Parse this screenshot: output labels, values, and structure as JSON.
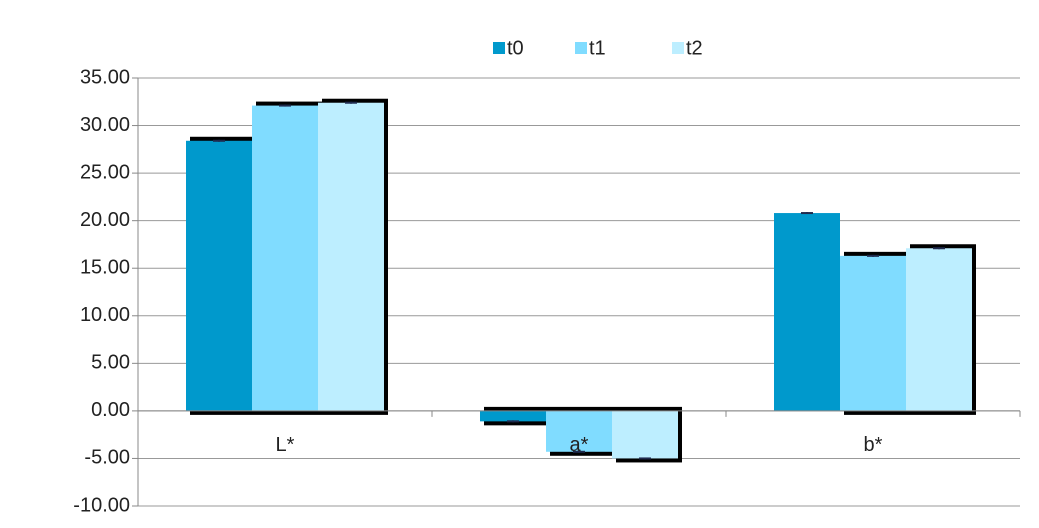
{
  "chart_data": {
    "type": "bar",
    "categories": [
      "L*",
      "a*",
      "b*"
    ],
    "series": [
      {
        "name": "t0",
        "color": "#0099cc",
        "values": [
          28.4,
          -1.1,
          20.8
        ],
        "errors": [
          0.1,
          0.1,
          0.1
        ]
      },
      {
        "name": "t1",
        "color": "#80dcff",
        "values": [
          32.1,
          -4.3,
          16.3
        ],
        "errors": [
          0.1,
          0.1,
          0.1
        ]
      },
      {
        "name": "t2",
        "color": "#bdeeff",
        "values": [
          32.4,
          -5.0,
          17.1
        ],
        "errors": [
          0.1,
          0.1,
          0.1
        ]
      }
    ],
    "ylim": [
      -10,
      35
    ],
    "yticks": [
      {
        "value": -10,
        "label": "-10.00"
      },
      {
        "value": -5,
        "label": "-5.00"
      },
      {
        "value": 0,
        "label": "0.00"
      },
      {
        "value": 5,
        "label": "5.00"
      },
      {
        "value": 10,
        "label": "10.00"
      },
      {
        "value": 15,
        "label": "15.00"
      },
      {
        "value": 20,
        "label": "20.00"
      },
      {
        "value": 25,
        "label": "25.00"
      },
      {
        "value": 30,
        "label": "30.00"
      },
      {
        "value": 35,
        "label": "35.00"
      }
    ],
    "grid": true,
    "legend": "top"
  }
}
